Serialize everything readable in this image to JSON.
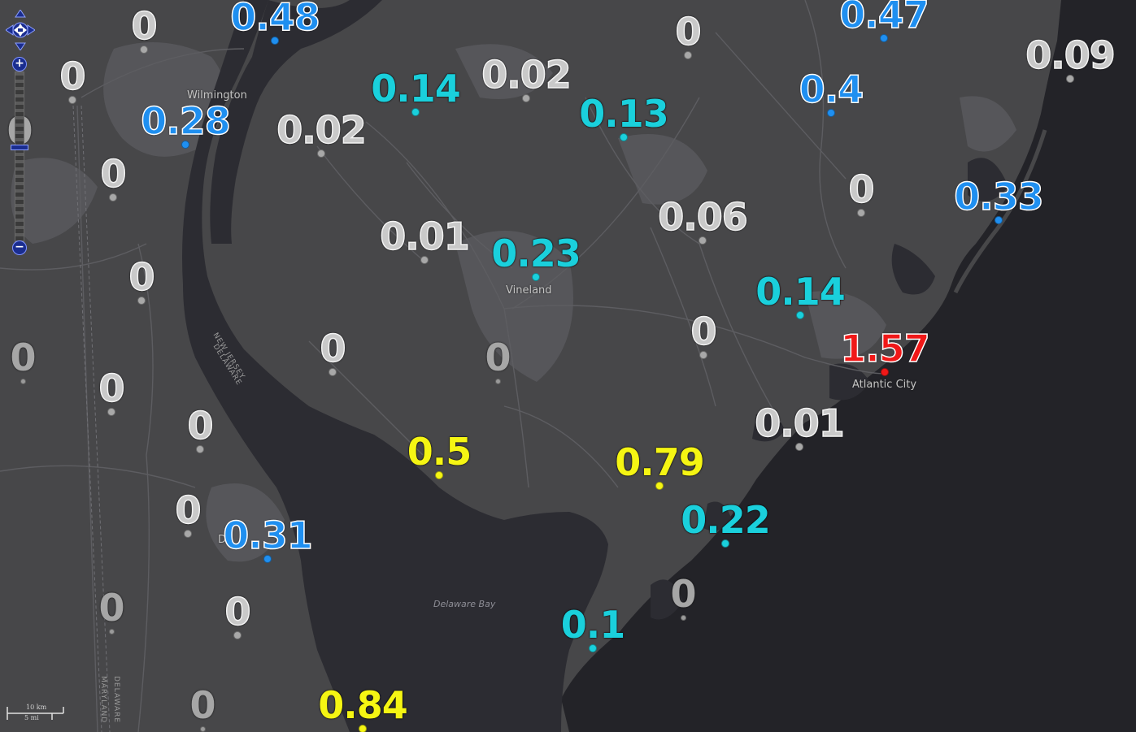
{
  "map": {
    "labels": {
      "wilmington": "Wilmington",
      "vineland": "Vineland",
      "atlantic_city": "Atlantic City",
      "delaware_bay": "Delaware Bay",
      "nj_border": "NEW JERSEY",
      "de_border": "DELAWARE",
      "md_border": "MARYLAND",
      "de_border2": "DELAWARE",
      "d_partial": "D"
    },
    "colors": {
      "zero": "#c9c9c9",
      "low": "#1f8ff0",
      "mid": "#1ad0dc",
      "high": "#f5f513",
      "max": "#f01818"
    },
    "stations": [
      {
        "value": "0.48",
        "cls": "blue"
      },
      {
        "value": "0",
        "cls": "gray"
      },
      {
        "value": "0",
        "cls": "gray"
      },
      {
        "value": "0.47",
        "cls": "blue"
      },
      {
        "value": "0.09",
        "cls": "gray"
      },
      {
        "value": "0",
        "cls": "gray"
      },
      {
        "value": "0.14",
        "cls": "cyan"
      },
      {
        "value": "0.02",
        "cls": "gray"
      },
      {
        "value": "0.13",
        "cls": "cyan"
      },
      {
        "value": "0.4",
        "cls": "blue"
      },
      {
        "value": "0.28",
        "cls": "blue"
      },
      {
        "value": "0.02",
        "cls": "gray"
      },
      {
        "value": "0",
        "cls": "gray"
      },
      {
        "value": "0",
        "cls": "gray"
      },
      {
        "value": "0.33",
        "cls": "blue"
      },
      {
        "value": "0.06",
        "cls": "gray"
      },
      {
        "value": "0.01",
        "cls": "gray"
      },
      {
        "value": "0.23",
        "cls": "cyan"
      },
      {
        "value": "0",
        "cls": "gray"
      },
      {
        "value": "0.14",
        "cls": "cyan"
      },
      {
        "value": "0",
        "cls": "gray"
      },
      {
        "value": "0",
        "cls": "faint"
      },
      {
        "value": "0",
        "cls": "gray"
      },
      {
        "value": "0",
        "cls": "faint"
      },
      {
        "value": "1.57",
        "cls": "red"
      },
      {
        "value": "0",
        "cls": "gray"
      },
      {
        "value": "0.01",
        "cls": "gray"
      },
      {
        "value": "0",
        "cls": "gray"
      },
      {
        "value": "0.5",
        "cls": "yellow"
      },
      {
        "value": "0.79",
        "cls": "yellow"
      },
      {
        "value": "0",
        "cls": "gray"
      },
      {
        "value": "0.31",
        "cls": "blue"
      },
      {
        "value": "0.22",
        "cls": "cyan"
      },
      {
        "value": "0",
        "cls": "faint"
      },
      {
        "value": "0",
        "cls": "gray"
      },
      {
        "value": "0",
        "cls": "faint"
      },
      {
        "value": "0.1",
        "cls": "cyan"
      },
      {
        "value": "0",
        "cls": "faint"
      },
      {
        "value": "0.84",
        "cls": "yellow"
      },
      {
        "value": "0",
        "cls": "faint"
      }
    ],
    "controls": {
      "zoom_in": "+",
      "zoom_out": "−"
    },
    "scale": {
      "km": "10 km",
      "mi": "5 mi"
    }
  }
}
